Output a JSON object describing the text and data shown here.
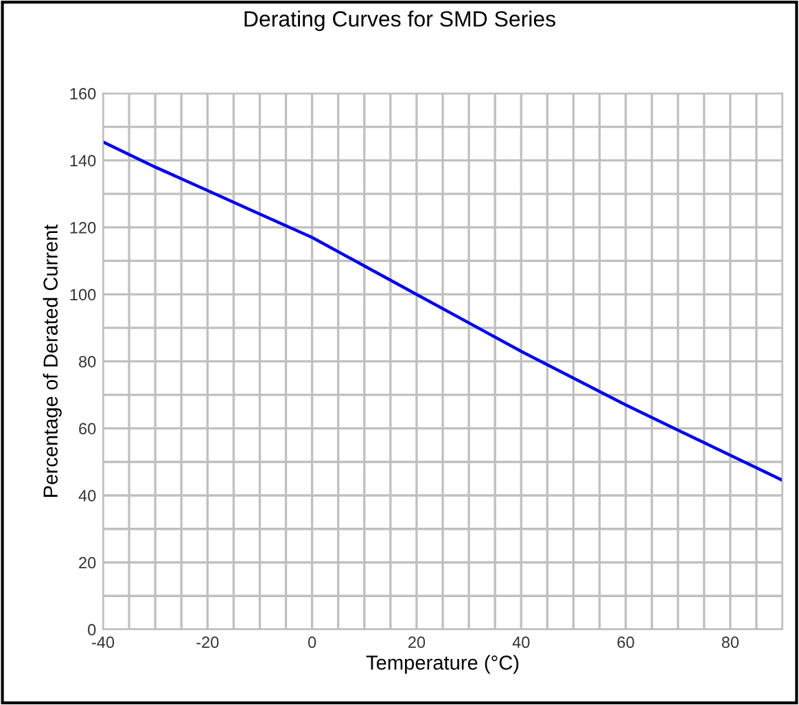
{
  "chart_data": {
    "type": "line",
    "title": "Derating Curves for SMD Series",
    "xlabel": "Temperature (°C)",
    "ylabel": "Percentage of Derated Current",
    "x": [
      -40,
      -30,
      -20,
      -10,
      0,
      10,
      20,
      30,
      40,
      50,
      60,
      70,
      80,
      90
    ],
    "series": [
      {
        "color": "#0000ee",
        "values": [
          145.5,
          138,
          131,
          124,
          117,
          108.5,
          100,
          91.5,
          83,
          75,
          67,
          59.5,
          52,
          44.5
        ]
      }
    ],
    "xlim": [
      -40,
      90
    ],
    "xticks": [
      -40,
      -20,
      0,
      20,
      40,
      60,
      80
    ],
    "ylim": [
      0,
      160
    ],
    "yticks": [
      0,
      20,
      40,
      60,
      80,
      100,
      120,
      140,
      160
    ],
    "grid": true,
    "marker": "none",
    "line_style": "solid"
  }
}
